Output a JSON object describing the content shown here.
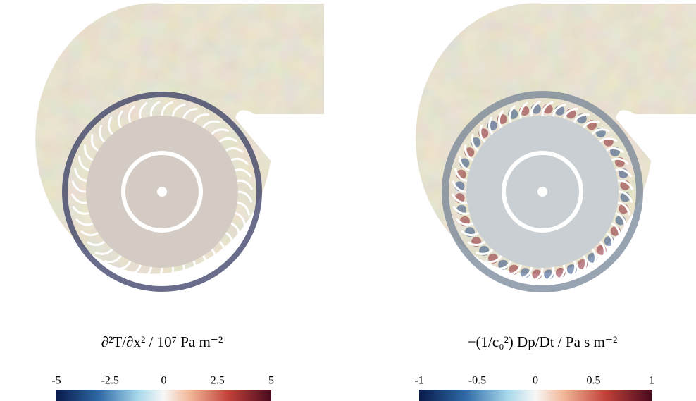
{
  "chart_data": [
    {
      "type": "colorbar",
      "title": "∂²T/∂x² / 10⁷ Pa m⁻²",
      "xlim": [
        -5,
        5
      ],
      "xticks": [
        -5,
        -2.5,
        0,
        2.5,
        5
      ]
    },
    {
      "type": "colorbar",
      "title": "−(1/c₀²) Dp/Dt / Pa s m⁻²",
      "xlim": [
        -1,
        1
      ],
      "xticks": [
        -1,
        -0.5,
        0,
        0.5,
        1
      ]
    }
  ]
}
